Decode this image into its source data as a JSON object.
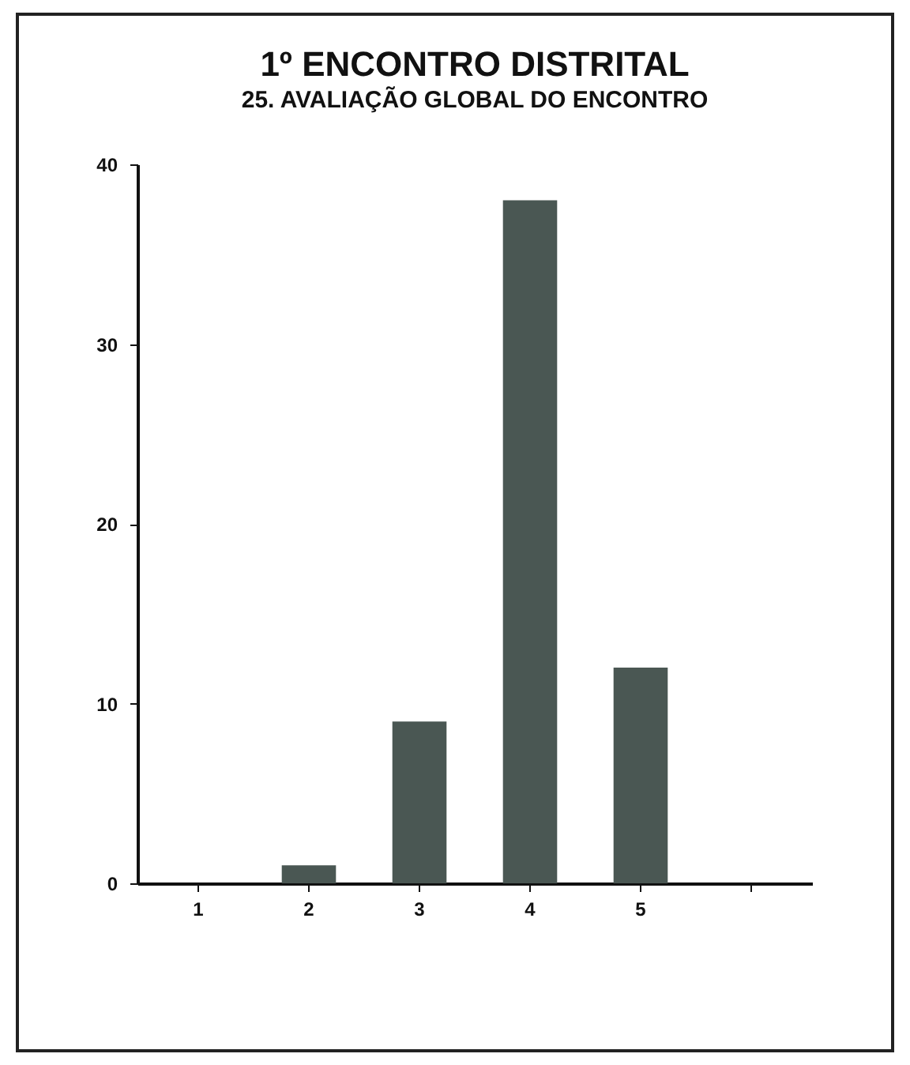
{
  "chart_data": {
    "type": "bar",
    "title": "1º ENCONTRO DISTRITAL",
    "subtitle": "25. AVALIAÇÃO GLOBAL DO ENCONTRO",
    "categories": [
      "1",
      "2",
      "3",
      "4",
      "5",
      null
    ],
    "values": [
      0,
      1,
      9,
      38,
      12,
      null
    ],
    "color": "#4a5753",
    "ylim": [
      0,
      40
    ],
    "yticks": [
      0,
      10,
      20,
      30,
      40
    ],
    "grid": false
  }
}
